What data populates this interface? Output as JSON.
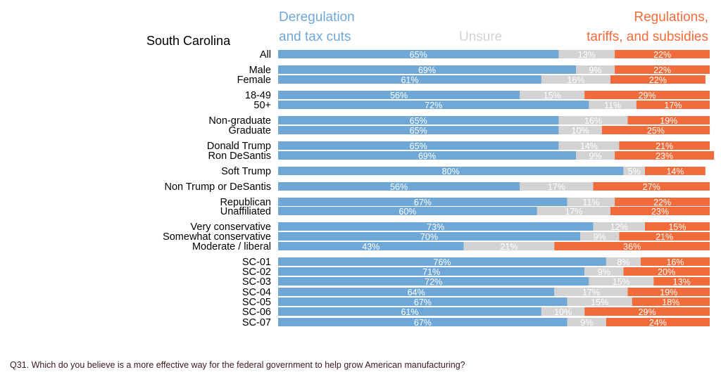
{
  "title": "South Carolina",
  "question": "Q31. Which do you believe is a more effective way for the federal government to help grow American manufacturing?",
  "legend": {
    "deregulation": [
      "Deregulation",
      "and tax cuts"
    ],
    "unsure": "Unsure",
    "regulations": [
      "Regulations,",
      "tariffs, and subsidies"
    ]
  },
  "colors": {
    "deregulation": "#6fa8d6",
    "unsure": "#d3d3d3",
    "regulations": "#f26b3a"
  },
  "chart_data": {
    "type": "bar",
    "orientation": "horizontal",
    "stacked": true,
    "xlim": [
      0,
      100
    ],
    "grid": false,
    "legend_position": "top",
    "categories": [
      "All",
      "Male",
      "Female",
      "18-49",
      "50+",
      "Non-graduate",
      "Graduate",
      "Donald Trump",
      "Ron DeSantis",
      "Soft Trump",
      "Non Trump or DeSantis",
      "Republican",
      "Unaffiliated",
      "Very conservative",
      "Somewhat conservative",
      "Moderate / liberal",
      "SC-01",
      "SC-02",
      "SC-03",
      "SC-04",
      "SC-05",
      "SC-06",
      "SC-07"
    ],
    "series": [
      {
        "name": "Deregulation and tax cuts",
        "values": [
          65,
          69,
          61,
          56,
          72,
          65,
          65,
          65,
          69,
          80,
          56,
          67,
          60,
          73,
          70,
          43,
          76,
          71,
          72,
          64,
          67,
          61,
          67
        ]
      },
      {
        "name": "Unsure",
        "values": [
          13,
          9,
          16,
          15,
          11,
          16,
          10,
          14,
          9,
          5,
          17,
          11,
          17,
          12,
          9,
          21,
          8,
          9,
          15,
          17,
          15,
          10,
          9
        ]
      },
      {
        "name": "Regulations, tariffs, and subsidies",
        "values": [
          22,
          22,
          22,
          29,
          17,
          19,
          25,
          21,
          23,
          14,
          27,
          22,
          23,
          15,
          21,
          36,
          16,
          20,
          13,
          19,
          18,
          29,
          24
        ]
      }
    ],
    "value_labels": [
      [
        "65%",
        "13%",
        "22%"
      ],
      [
        "69%",
        "9%",
        "22%"
      ],
      [
        "61%",
        "16%",
        "22%"
      ],
      [
        "56%",
        "15%",
        "29%"
      ],
      [
        "72%",
        "11%",
        "17%"
      ],
      [
        "65%",
        "16%",
        "19%"
      ],
      [
        "65%",
        "10%",
        "25%"
      ],
      [
        "65%",
        "14%",
        "21%"
      ],
      [
        "69%",
        "9%",
        "23%"
      ],
      [
        "80%",
        "5%",
        "14%"
      ],
      [
        "56%",
        "17%",
        "27%"
      ],
      [
        "67%",
        "11%",
        "22%"
      ],
      [
        "60%",
        "17%",
        "23%"
      ],
      [
        "73%",
        "12%",
        "15%"
      ],
      [
        "70%",
        "9%",
        "21%"
      ],
      [
        "43%",
        "21%",
        "36%"
      ],
      [
        "76%",
        "8%",
        "16%"
      ],
      [
        "71%",
        "9%",
        "20%"
      ],
      [
        "72%",
        "15%",
        "13%"
      ],
      [
        "64%",
        "17%",
        "19%"
      ],
      [
        "67%",
        "15%",
        "18%"
      ],
      [
        "61%",
        "10%",
        "29%"
      ],
      [
        "67%",
        "9%",
        "24%"
      ]
    ]
  }
}
